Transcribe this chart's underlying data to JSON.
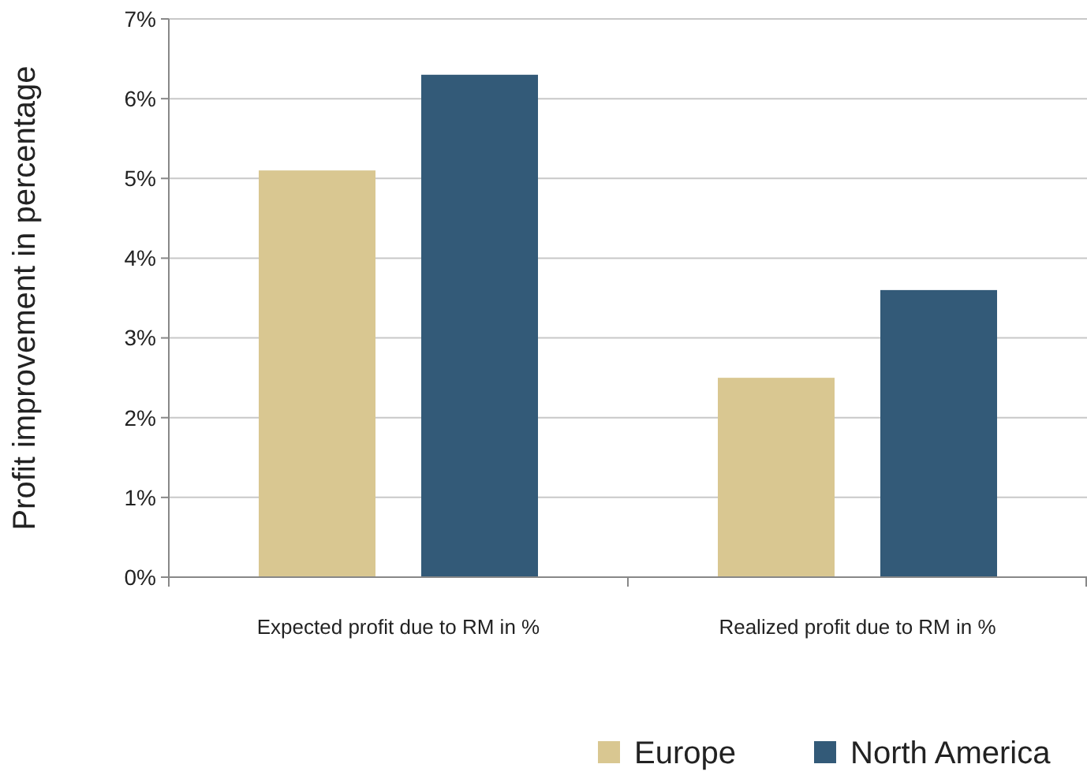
{
  "chart_data": {
    "type": "bar",
    "ylabel": "Profit improvement in percentage",
    "categories": [
      "Expected profit due to RM in %",
      "Realized profit due to RM in %"
    ],
    "series": [
      {
        "name": "Europe",
        "color": "#d9c791",
        "values": [
          5.1,
          2.5
        ]
      },
      {
        "name": "North America",
        "color": "#335a78",
        "values": [
          6.3,
          3.6
        ]
      }
    ],
    "ylim": [
      0,
      7
    ],
    "yticks": [
      {
        "value": 0,
        "label": "0%"
      },
      {
        "value": 1,
        "label": "1%"
      },
      {
        "value": 2,
        "label": "2%"
      },
      {
        "value": 3,
        "label": "3%"
      },
      {
        "value": 4,
        "label": "4%"
      },
      {
        "value": 5,
        "label": "5%"
      },
      {
        "value": 6,
        "label": "6%"
      },
      {
        "value": 7,
        "label": "7%"
      }
    ],
    "grid": "y",
    "legend": "bottom right"
  }
}
